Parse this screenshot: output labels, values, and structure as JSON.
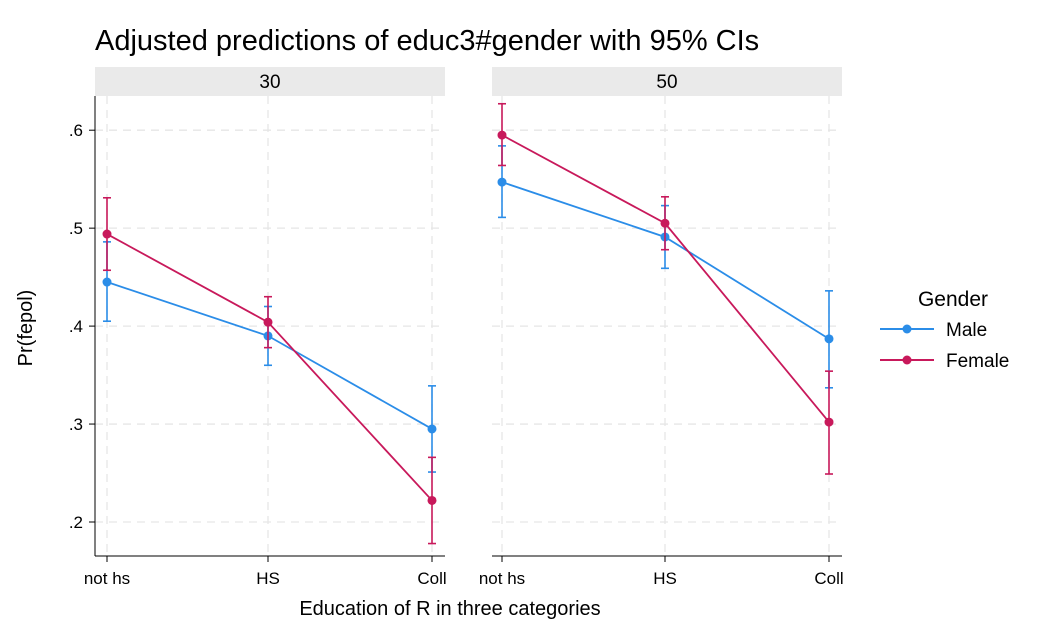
{
  "chart_data": {
    "type": "line",
    "title": "Adjusted predictions of educ3#gender with 95% CIs",
    "xlabel": "Education of R in three categories",
    "ylabel": "Pr(fepol)",
    "categories": [
      "not hs",
      "HS",
      "Coll"
    ],
    "yticks": [
      ".2",
      ".3",
      ".4",
      ".5",
      ".6"
    ],
    "yticks_values": [
      0.2,
      0.3,
      0.4,
      0.5,
      0.6
    ],
    "ylim": [
      0.18,
      0.64
    ],
    "grid": true,
    "legend": {
      "title": "Gender",
      "position": "right"
    },
    "panels": [
      {
        "label": "30",
        "series": [
          {
            "name": "Male",
            "color": "#2b8de8",
            "values": [
              0.445,
              0.39,
              0.295
            ],
            "ci_low": [
              0.405,
              0.36,
              0.251
            ],
            "ci_high": [
              0.486,
              0.42,
              0.339
            ]
          },
          {
            "name": "Female",
            "color": "#c8195b",
            "values": [
              0.494,
              0.404,
              0.222
            ],
            "ci_low": [
              0.457,
              0.378,
              0.178
            ],
            "ci_high": [
              0.531,
              0.43,
              0.266
            ]
          }
        ]
      },
      {
        "label": "50",
        "series": [
          {
            "name": "Male",
            "color": "#2b8de8",
            "values": [
              0.547,
              0.491,
              0.387
            ],
            "ci_low": [
              0.511,
              0.459,
              0.337
            ],
            "ci_high": [
              0.584,
              0.523,
              0.436
            ]
          },
          {
            "name": "Female",
            "color": "#c8195b",
            "values": [
              0.595,
              0.505,
              0.302
            ],
            "ci_low": [
              0.564,
              0.478,
              0.249
            ],
            "ci_high": [
              0.627,
              0.532,
              0.354
            ]
          }
        ]
      }
    ]
  }
}
